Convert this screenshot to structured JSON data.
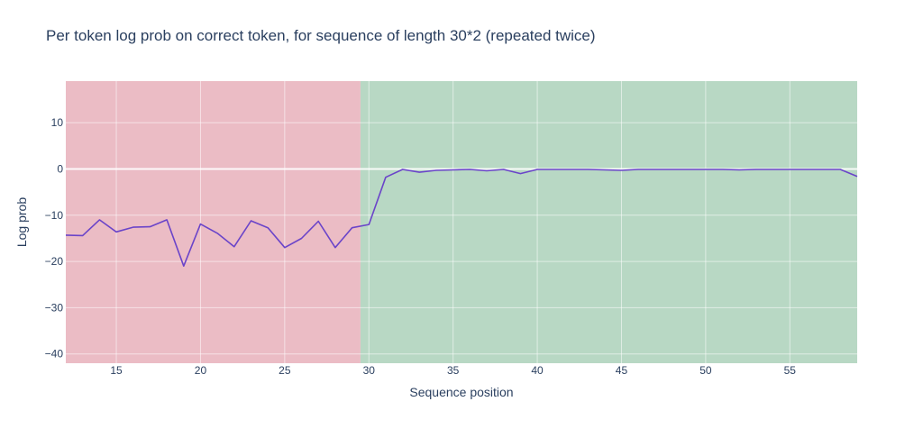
{
  "chart_data": {
    "type": "line",
    "title": "Per token log prob on correct token, for sequence of length 30*2 (repeated twice)",
    "xlabel": "Sequence position",
    "ylabel": "Log prob",
    "xlim": [
      12,
      59
    ],
    "ylim": [
      -42,
      19
    ],
    "xticks": [
      15,
      20,
      25,
      30,
      35,
      40,
      45,
      50,
      55
    ],
    "yticks": [
      10,
      0,
      -10,
      -20,
      -30,
      -40
    ],
    "tick_labels": {
      "x": [
        "15",
        "20",
        "25",
        "30",
        "35",
        "40",
        "45",
        "50",
        "55"
      ],
      "y": [
        "10",
        "0",
        "−10",
        "−20",
        "−30",
        "−40"
      ]
    },
    "grid": true,
    "regions": [
      {
        "x0": 12,
        "x1": 29.5,
        "color": "#ebbcc5"
      },
      {
        "x0": 29.5,
        "x1": 59,
        "color": "#b8d8c4"
      }
    ],
    "series": [
      {
        "color": "#6a44c9",
        "x": [
          12,
          13,
          14,
          15,
          16,
          17,
          18,
          19,
          20,
          21,
          22,
          23,
          24,
          25,
          26,
          27,
          28,
          29,
          30,
          31,
          32,
          33,
          34,
          35,
          36,
          37,
          38,
          39,
          40,
          41,
          42,
          43,
          44,
          45,
          46,
          47,
          48,
          49,
          50,
          51,
          52,
          53,
          54,
          55,
          56,
          57,
          58,
          59
        ],
        "values": [
          -14.3,
          -14.4,
          -11.0,
          -13.6,
          -12.6,
          -12.5,
          -11.0,
          -21.0,
          -11.9,
          -13.9,
          -16.8,
          -11.2,
          -12.7,
          -17.0,
          -15.0,
          -11.3,
          -17.0,
          -12.7,
          -12.0,
          -1.8,
          -0.1,
          -0.7,
          -0.3,
          -0.2,
          -0.1,
          -0.4,
          -0.1,
          -1.0,
          -0.1,
          -0.1,
          -0.1,
          -0.1,
          -0.2,
          -0.3,
          -0.1,
          -0.1,
          -0.1,
          -0.1,
          -0.1,
          -0.1,
          -0.2,
          -0.1,
          -0.1,
          -0.1,
          -0.1,
          -0.1,
          -0.1,
          -1.6
        ]
      }
    ]
  }
}
